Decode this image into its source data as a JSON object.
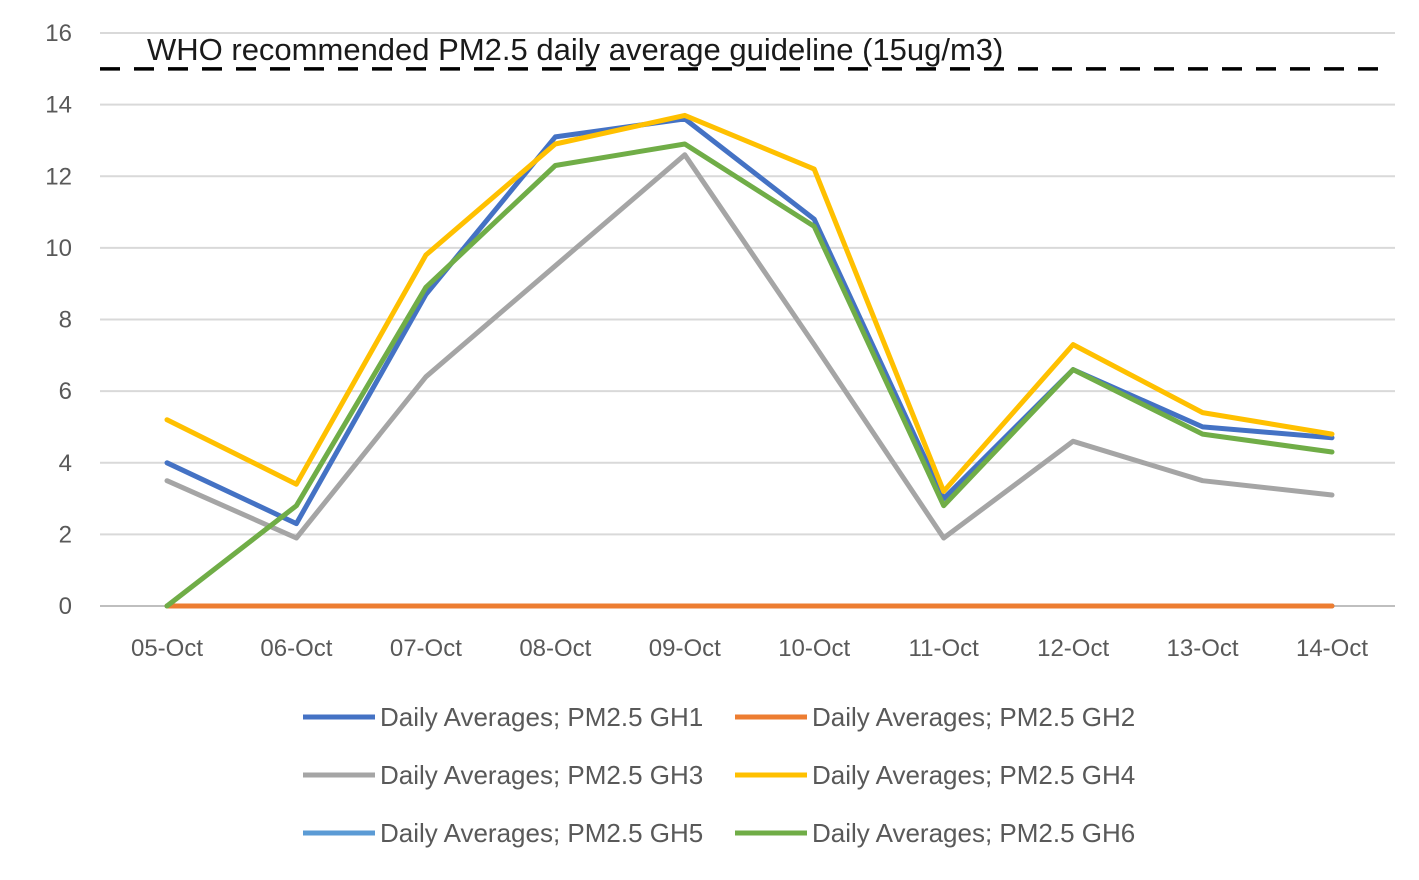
{
  "chart_data": {
    "type": "line",
    "title": "",
    "xlabel": "",
    "ylabel": "",
    "categories": [
      "05-Oct",
      "06-Oct",
      "07-Oct",
      "08-Oct",
      "09-Oct",
      "10-Oct",
      "11-Oct",
      "12-Oct",
      "13-Oct",
      "14-Oct"
    ],
    "ylim": [
      0,
      16
    ],
    "yticks": [
      0,
      2,
      4,
      6,
      8,
      10,
      12,
      14,
      16
    ],
    "grid": true,
    "legend_position": "bottom",
    "series": [
      {
        "name": "Daily Averages; PM2.5 GH1",
        "color": "#4472C4",
        "values": [
          4.0,
          2.3,
          8.7,
          13.1,
          13.6,
          10.8,
          3.0,
          6.6,
          5.0,
          4.7
        ]
      },
      {
        "name": "Daily Averages; PM2.5 GH2",
        "color": "#ED7D31",
        "values": [
          0,
          0,
          0,
          0,
          0,
          0,
          0,
          0,
          0,
          0
        ]
      },
      {
        "name": "Daily Averages; PM2.5 GH3",
        "color": "#A5A5A5",
        "values": [
          3.5,
          1.9,
          6.4,
          9.5,
          12.6,
          7.3,
          1.9,
          4.6,
          3.5,
          3.1
        ]
      },
      {
        "name": "Daily Averages; PM2.5 GH4",
        "color": "#FFC000",
        "values": [
          5.2,
          3.4,
          9.8,
          12.9,
          13.7,
          12.2,
          3.2,
          7.3,
          5.4,
          4.8
        ]
      },
      {
        "name": "Daily Averages; PM2.5 GH5",
        "color": "#5B9BD5",
        "values": [
          0,
          0,
          0,
          0,
          0,
          0,
          0,
          0,
          0,
          0
        ]
      },
      {
        "name": "Daily Averages; PM2.5 GH6",
        "color": "#70AD47",
        "values": [
          0.0,
          2.8,
          8.9,
          12.3,
          12.9,
          10.6,
          2.8,
          6.6,
          4.8,
          4.3
        ]
      }
    ],
    "annotations": [
      {
        "text": "WHO recommended PM2.5 daily average guideline (15ug/m3)",
        "y": 15,
        "style": "dashed",
        "color": "#000000"
      }
    ]
  }
}
